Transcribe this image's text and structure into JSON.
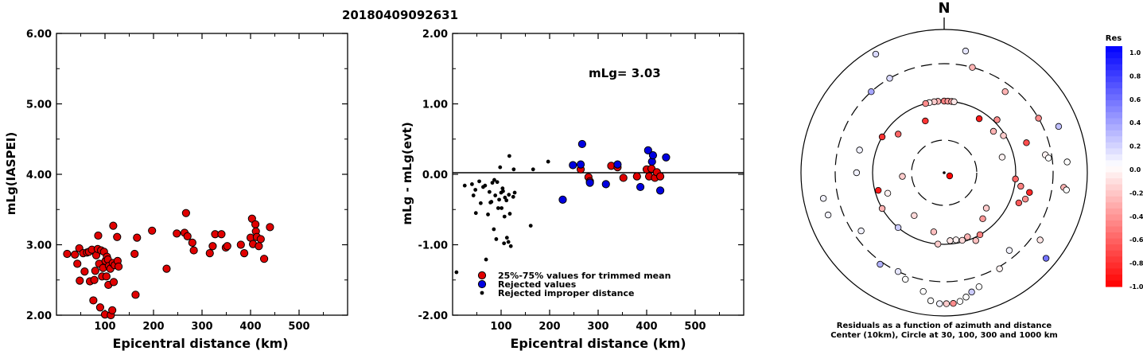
{
  "event_id": "20180409092631",
  "chart_data": [
    {
      "type": "scatter",
      "xlabel": "Epicentral distance (km)",
      "ylabel": "mLg(IASPEI)",
      "xlim": [
        0,
        600
      ],
      "ylim": [
        2.0,
        6.0
      ],
      "xticks": [
        "100",
        "200",
        "300",
        "400",
        "500"
      ],
      "yticks": [
        "2.00",
        "3.00",
        "4.00",
        "5.00",
        "6.00"
      ],
      "marker_color": "#e00000",
      "points": [
        [
          22,
          2.87
        ],
        [
          38,
          2.86
        ],
        [
          43,
          2.73
        ],
        [
          47,
          2.95
        ],
        [
          48,
          2.49
        ],
        [
          55,
          2.88
        ],
        [
          58,
          2.62
        ],
        [
          63,
          2.89
        ],
        [
          67,
          2.9
        ],
        [
          69,
          2.48
        ],
        [
          73,
          2.93
        ],
        [
          76,
          2.21
        ],
        [
          78,
          2.5
        ],
        [
          80,
          2.63
        ],
        [
          82,
          2.85
        ],
        [
          85,
          2.94
        ],
        [
          86,
          3.13
        ],
        [
          88,
          2.73
        ],
        [
          90,
          2.11
        ],
        [
          92,
          2.92
        ],
        [
          94,
          2.55
        ],
        [
          96,
          2.67
        ],
        [
          98,
          2.9
        ],
        [
          100,
          2.01
        ],
        [
          101,
          2.77
        ],
        [
          103,
          2.55
        ],
        [
          104,
          2.83
        ],
        [
          106,
          2.79
        ],
        [
          107,
          2.43
        ],
        [
          108,
          2.7
        ],
        [
          111,
          2.66
        ],
        [
          112,
          2.0
        ],
        [
          115,
          2.07
        ],
        [
          116,
          2.74
        ],
        [
          117,
          3.27
        ],
        [
          118,
          2.47
        ],
        [
          120,
          2.71
        ],
        [
          125,
          3.11
        ],
        [
          126,
          2.77
        ],
        [
          128,
          2.69
        ],
        [
          161,
          2.87
        ],
        [
          163,
          2.29
        ],
        [
          166,
          3.1
        ],
        [
          197,
          3.2
        ],
        [
          227,
          2.66
        ],
        [
          248,
          3.16
        ],
        [
          264,
          3.17
        ],
        [
          267,
          3.45
        ],
        [
          270,
          3.12
        ],
        [
          280,
          3.03
        ],
        [
          283,
          2.92
        ],
        [
          316,
          2.88
        ],
        [
          322,
          2.98
        ],
        [
          327,
          3.15
        ],
        [
          340,
          3.15
        ],
        [
          349,
          2.96
        ],
        [
          352,
          2.98
        ],
        [
          380,
          3.0
        ],
        [
          387,
          2.88
        ],
        [
          400,
          3.1
        ],
        [
          403,
          3.37
        ],
        [
          405,
          3.01
        ],
        [
          410,
          3.29
        ],
        [
          411,
          3.19
        ],
        [
          413,
          3.11
        ],
        [
          417,
          2.98
        ],
        [
          421,
          3.08
        ],
        [
          428,
          2.8
        ],
        [
          440,
          3.25
        ]
      ]
    },
    {
      "type": "scatter",
      "xlabel": "Epicentral distance (km)",
      "ylabel": "mLg - mLg(evt)",
      "xlim": [
        0,
        600
      ],
      "ylim": [
        -2.0,
        2.0
      ],
      "xticks": [
        "100",
        "200",
        "300",
        "400",
        "500"
      ],
      "yticks": [
        "-2.00",
        "-1.00",
        "0.00",
        "1.00",
        "2.00"
      ],
      "annotation": "mLg= 3.03",
      "legend": [
        {
          "label": "25%-75% values for trimmed mean",
          "color": "#e00000"
        },
        {
          "label": "Rejected values",
          "color": "#0000e0"
        },
        {
          "label": "Rejected improper distance",
          "color": "#000000"
        }
      ],
      "series": [
        {
          "color": "#e00000",
          "size": "large",
          "points": [
            [
              264,
              0.07
            ],
            [
              280,
              -0.04
            ],
            [
              283,
              -0.1
            ],
            [
              327,
              0.12
            ],
            [
              340,
              0.1
            ],
            [
              352,
              -0.05
            ],
            [
              380,
              -0.03
            ],
            [
              400,
              0.07
            ],
            [
              405,
              -0.03
            ],
            [
              410,
              0.08
            ],
            [
              417,
              -0.05
            ],
            [
              421,
              0.03
            ],
            [
              428,
              -0.03
            ]
          ]
        },
        {
          "color": "#0000e0",
          "size": "large",
          "points": [
            [
              227,
              -0.36
            ],
            [
              248,
              0.13
            ],
            [
              264,
              0.14
            ],
            [
              267,
              0.43
            ],
            [
              283,
              -0.12
            ],
            [
              316,
              -0.14
            ],
            [
              340,
              0.14
            ],
            [
              387,
              -0.18
            ],
            [
              403,
              0.34
            ],
            [
              411,
              0.18
            ],
            [
              413,
              0.27
            ],
            [
              428,
              -0.23
            ],
            [
              440,
              0.24
            ]
          ]
        },
        {
          "color": "#000000",
          "size": "small",
          "points": [
            [
              8,
              -1.39
            ],
            [
              25,
              -0.16
            ],
            [
              40,
              -0.14
            ],
            [
              43,
              -0.3
            ],
            [
              47,
              -0.22
            ],
            [
              48,
              -0.55
            ],
            [
              55,
              -0.1
            ],
            [
              58,
              -0.41
            ],
            [
              63,
              -0.18
            ],
            [
              67,
              -0.16
            ],
            [
              69,
              -1.21
            ],
            [
              73,
              -0.57
            ],
            [
              76,
              -0.25
            ],
            [
              78,
              -0.4
            ],
            [
              80,
              -0.39
            ],
            [
              82,
              -0.12
            ],
            [
              85,
              -0.78
            ],
            [
              86,
              -0.08
            ],
            [
              88,
              -0.3
            ],
            [
              90,
              -0.92
            ],
            [
              92,
              -0.11
            ],
            [
              94,
              -0.48
            ],
            [
              96,
              -0.36
            ],
            [
              98,
              0.1
            ],
            [
              100,
              -0.26
            ],
            [
              101,
              -0.48
            ],
            [
              103,
              -0.2
            ],
            [
              104,
              -0.24
            ],
            [
              106,
              -0.98
            ],
            [
              107,
              -0.6
            ],
            [
              108,
              -0.33
            ],
            [
              111,
              -0.37
            ],
            [
              112,
              -0.9
            ],
            [
              115,
              -0.96
            ],
            [
              116,
              -0.29
            ],
            [
              117,
              0.26
            ],
            [
              118,
              -0.56
            ],
            [
              120,
              -1.02
            ],
            [
              125,
              -0.32
            ],
            [
              126,
              0.07
            ],
            [
              128,
              -0.26
            ],
            [
              161,
              -0.73
            ],
            [
              166,
              0.07
            ],
            [
              197,
              0.18
            ]
          ]
        }
      ]
    },
    {
      "type": "polar-scatter",
      "north_label": "N",
      "caption_line1": "Residuals as a function of azimuth and distance",
      "caption_line2": "Center (10km), Circle at 30, 100, 300 and 1000 km",
      "colorbar_title": "Res",
      "colorbar_ticks": [
        "1.0",
        "0.8",
        "0.6",
        "0.4",
        "0.2",
        "0.0",
        "-0.2",
        "-0.4",
        "-0.6",
        "-0.8",
        "-1.0"
      ],
      "circles_km": [
        30,
        100,
        300,
        1000
      ],
      "stations": [
        {
          "az": 120,
          "dist": 10,
          "res": -1.0
        },
        {
          "az": 330,
          "dist": 300,
          "res": 0.15
        },
        {
          "az": 318,
          "dist": 300,
          "res": 0.35
        },
        {
          "az": 15,
          "dist": 300,
          "res": -0.3
        },
        {
          "az": 355,
          "dist": 100,
          "res": -0.3
        },
        {
          "az": 0,
          "dist": 100,
          "res": -0.5
        },
        {
          "az": 3,
          "dist": 100,
          "res": -0.4
        },
        {
          "az": 6,
          "dist": 100,
          "res": -0.35
        },
        {
          "az": 8,
          "dist": 100,
          "res": -0.1
        },
        {
          "az": 352,
          "dist": 100,
          "res": -0.2
        },
        {
          "az": 348,
          "dist": 100,
          "res": -0.05
        },
        {
          "az": 345,
          "dist": 100,
          "res": -0.45
        },
        {
          "az": 33,
          "dist": 80,
          "res": -0.9
        },
        {
          "az": 340,
          "dist": 60,
          "res": -0.8
        },
        {
          "az": 310,
          "dist": 70,
          "res": -0.6
        },
        {
          "az": 300,
          "dist": 100,
          "res": -0.8
        },
        {
          "az": 50,
          "dist": 80,
          "res": -0.3
        },
        {
          "az": 58,
          "dist": 95,
          "res": -0.2
        },
        {
          "az": 45,
          "dist": 110,
          "res": -0.45
        },
        {
          "az": 75,
          "dist": 70,
          "res": -0.05
        },
        {
          "az": 80,
          "dist": 250,
          "res": -0.05
        },
        {
          "az": 82,
          "dist": 270,
          "res": 0.0
        },
        {
          "az": 70,
          "dist": 160,
          "res": -0.7
        },
        {
          "az": 95,
          "dist": 100,
          "res": -0.6
        },
        {
          "az": 100,
          "dist": 120,
          "res": -0.5
        },
        {
          "az": 103,
          "dist": 160,
          "res": -0.85
        },
        {
          "az": 108,
          "dist": 150,
          "res": -0.45
        },
        {
          "az": 112,
          "dist": 130,
          "res": -0.65
        },
        {
          "az": 130,
          "dist": 60,
          "res": -0.2
        },
        {
          "az": 140,
          "dist": 70,
          "res": -0.4
        },
        {
          "az": 150,
          "dist": 100,
          "res": -0.5
        },
        {
          "az": 155,
          "dist": 110,
          "res": -0.25
        },
        {
          "az": 160,
          "dist": 90,
          "res": -0.3
        },
        {
          "az": 165,
          "dist": 95,
          "res": -0.15
        },
        {
          "az": 170,
          "dist": 90,
          "res": -0.05
        },
        {
          "az": 175,
          "dist": 90,
          "res": -0.1
        },
        {
          "az": 185,
          "dist": 100,
          "res": -0.2
        },
        {
          "az": 190,
          "dist": 70,
          "res": -0.25
        },
        {
          "az": 215,
          "dist": 55,
          "res": -0.15
        },
        {
          "az": 220,
          "dist": 100,
          "res": 0.2
        },
        {
          "az": 240,
          "dist": 100,
          "res": -0.3
        },
        {
          "az": 250,
          "dist": 70,
          "res": -0.05
        },
        {
          "az": 255,
          "dist": 90,
          "res": -0.9
        },
        {
          "az": 265,
          "dist": 40,
          "res": -0.2
        },
        {
          "az": 285,
          "dist": 160,
          "res": 0.05
        },
        {
          "az": 270,
          "dist": 160,
          "res": 0.05
        },
        {
          "az": 258,
          "dist": 500,
          "res": 0.05
        },
        {
          "az": 250,
          "dist": 500,
          "res": 0.05
        },
        {
          "az": 235,
          "dist": 240,
          "res": 0.05
        },
        {
          "az": 215,
          "dist": 330,
          "res": 0.3
        },
        {
          "az": 205,
          "dist": 300,
          "res": 0.1
        },
        {
          "az": 200,
          "dist": 350,
          "res": 0.0
        },
        {
          "az": 190,
          "dist": 450,
          "res": 0.0
        },
        {
          "az": 186,
          "dist": 600,
          "res": 0.0
        },
        {
          "az": 182,
          "dist": 650,
          "res": 0.05
        },
        {
          "az": 179,
          "dist": 650,
          "res": -0.2
        },
        {
          "az": 176,
          "dist": 650,
          "res": -0.45
        },
        {
          "az": 173,
          "dist": 620,
          "res": 0.0
        },
        {
          "az": 170,
          "dist": 550,
          "res": 0.0
        },
        {
          "az": 167,
          "dist": 480,
          "res": 0.2
        },
        {
          "az": 163,
          "dist": 430,
          "res": 0.0
        },
        {
          "az": 150,
          "dist": 320,
          "res": -0.05
        },
        {
          "az": 140,
          "dist": 240,
          "res": 0.05
        },
        {
          "az": 130,
          "dist": 700,
          "res": 0.55
        },
        {
          "az": 125,
          "dist": 400,
          "res": -0.1
        },
        {
          "az": 97,
          "dist": 450,
          "res": -0.3
        },
        {
          "az": 98,
          "dist": 500,
          "res": 0.0
        },
        {
          "az": 85,
          "dist": 500,
          "res": 0.0
        },
        {
          "az": 68,
          "dist": 500,
          "res": 0.25
        },
        {
          "az": 60,
          "dist": 300,
          "res": -0.45
        },
        {
          "az": 37,
          "dist": 240,
          "res": -0.3
        },
        {
          "az": 10,
          "dist": 500,
          "res": 0.1
        },
        {
          "az": 330,
          "dist": 800,
          "res": 0.15
        }
      ]
    }
  ]
}
